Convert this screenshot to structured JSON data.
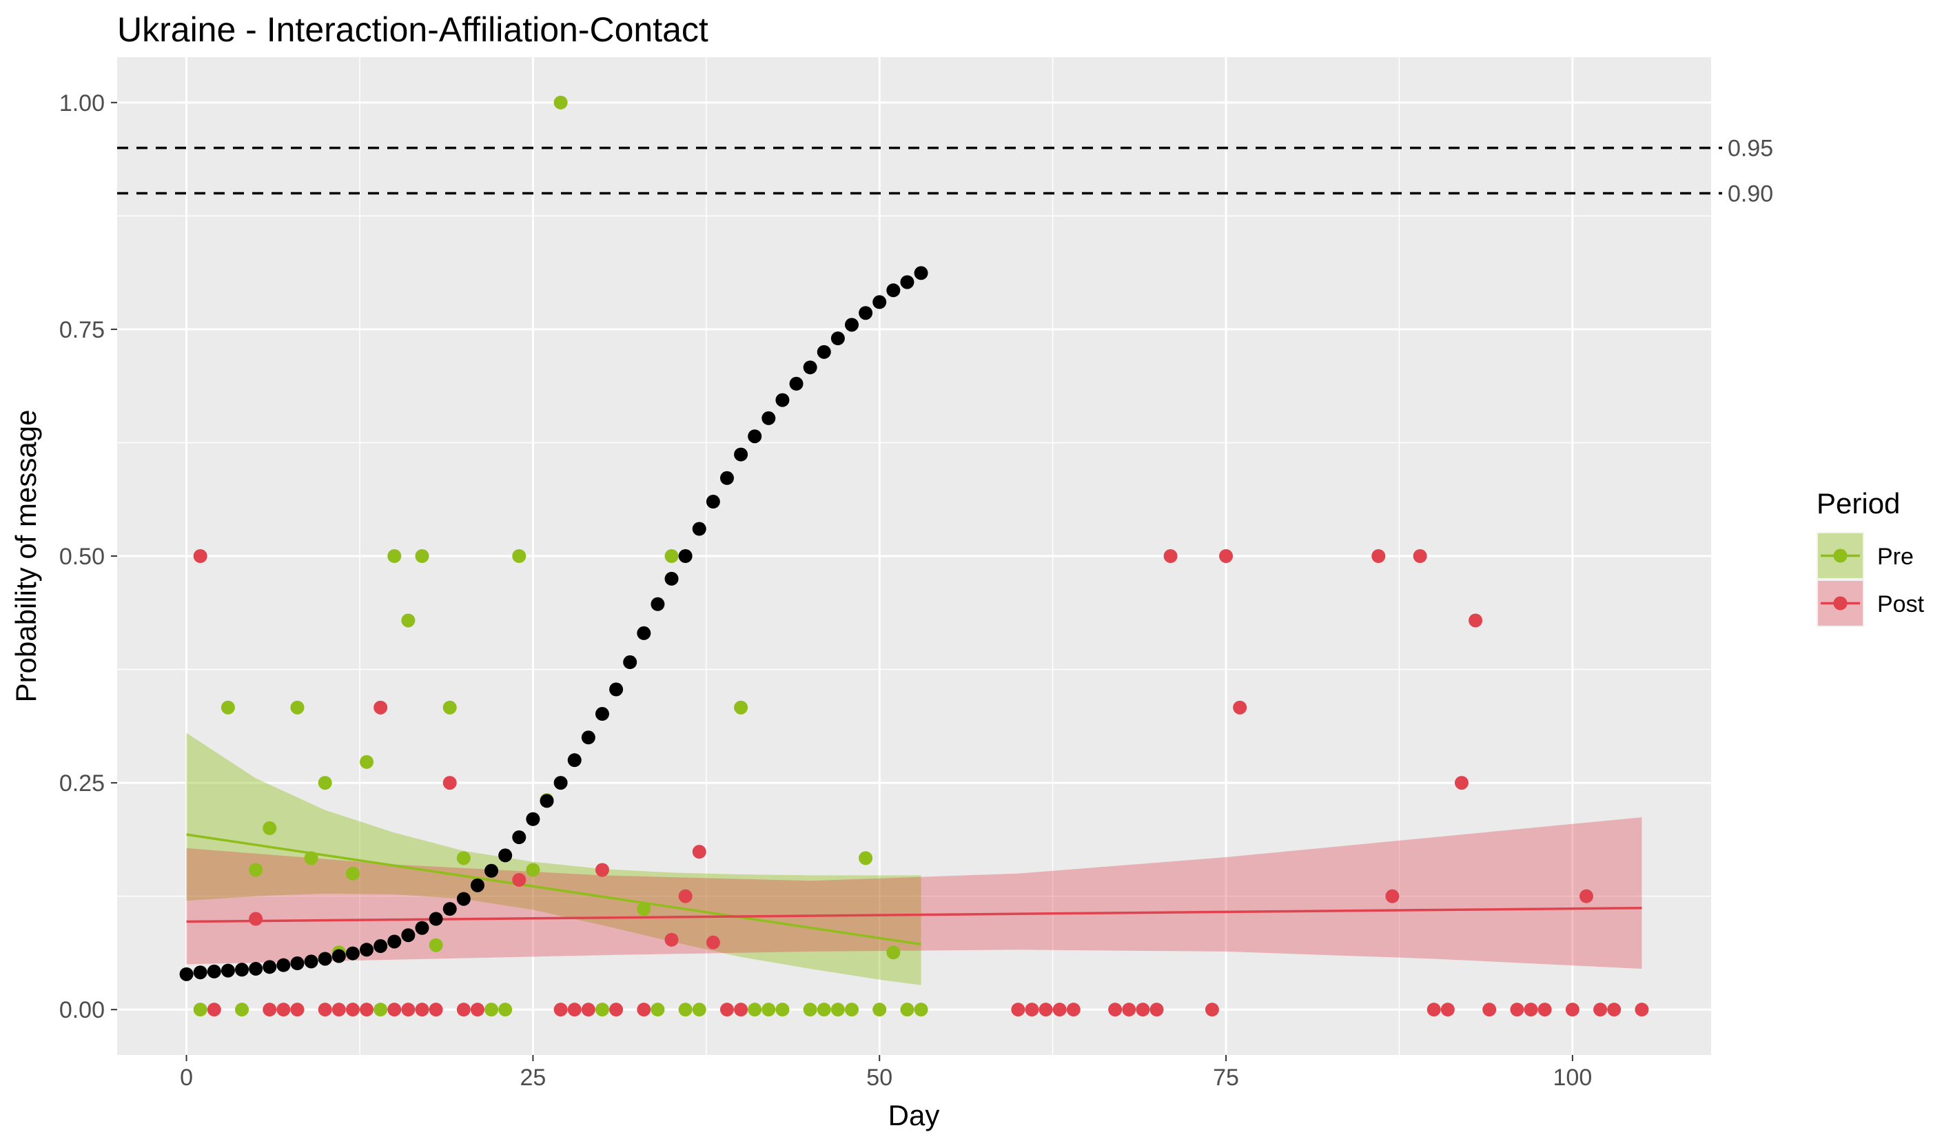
{
  "chart_data": {
    "type": "scatter",
    "title": "Ukraine - Interaction-Affiliation-Contact",
    "xlabel": "Day",
    "ylabel": "Probability of message",
    "xlim": [
      -5,
      110
    ],
    "ylim": [
      -0.05,
      1.05
    ],
    "x_ticks": [
      0,
      25,
      50,
      75,
      100
    ],
    "x_tick_labels": [
      "0",
      "25",
      "50",
      "75",
      "100"
    ],
    "y_ticks": [
      0,
      0.25,
      0.5,
      0.75,
      1.0
    ],
    "y_tick_labels": [
      "0.00",
      "0.25",
      "0.50",
      "0.75",
      "1.00"
    ],
    "grid": true,
    "reference_lines": [
      {
        "y": 0.95,
        "label": "0.95",
        "style": "dashed"
      },
      {
        "y": 0.9,
        "label": "0.90",
        "style": "dashed"
      }
    ],
    "legend": {
      "title": "Period",
      "position": "right",
      "entries": [
        "Pre",
        "Post"
      ]
    },
    "colors": {
      "Pre": "#8fbe1a",
      "Post": "#e0434e",
      "cumulative": "#000000",
      "panel": "#ebebeb",
      "grid": "#ffffff"
    },
    "series": [
      {
        "name": "Pre",
        "points": [
          [
            1,
            0
          ],
          [
            3,
            0.333
          ],
          [
            4,
            0
          ],
          [
            5,
            0.154
          ],
          [
            6,
            0.2
          ],
          [
            8,
            0.333
          ],
          [
            9,
            0.167
          ],
          [
            10,
            0.25
          ],
          [
            11,
            0.063
          ],
          [
            12,
            0.15
          ],
          [
            13,
            0.273
          ],
          [
            14,
            0
          ],
          [
            15,
            0.5
          ],
          [
            16,
            0.429
          ],
          [
            17,
            0.5
          ],
          [
            18,
            0.071
          ],
          [
            19,
            0.333
          ],
          [
            20,
            0.167
          ],
          [
            22,
            0
          ],
          [
            23,
            0
          ],
          [
            24,
            0.5
          ],
          [
            25,
            0.154
          ],
          [
            26,
            0.231
          ],
          [
            27,
            1.0
          ],
          [
            30,
            0
          ],
          [
            33,
            0.111
          ],
          [
            34,
            0
          ],
          [
            35,
            0.5
          ],
          [
            36,
            0
          ],
          [
            37,
            0
          ],
          [
            40,
            0.333
          ],
          [
            41,
            0
          ],
          [
            42,
            0
          ],
          [
            43,
            0
          ],
          [
            45,
            0
          ],
          [
            46,
            0
          ],
          [
            47,
            0
          ],
          [
            48,
            0
          ],
          [
            49,
            0.167
          ],
          [
            50,
            0
          ],
          [
            51,
            0.063
          ],
          [
            52,
            0
          ],
          [
            53,
            0
          ]
        ],
        "fit": {
          "x": [
            0,
            53
          ],
          "y": [
            0.193,
            0.072
          ]
        },
        "band": {
          "x": [
            0,
            5,
            10,
            15,
            20,
            25,
            30,
            35,
            40,
            45,
            50,
            53
          ],
          "lower": [
            0.12,
            0.125,
            0.128,
            0.127,
            0.122,
            0.11,
            0.093,
            0.075,
            0.058,
            0.045,
            0.033,
            0.027
          ],
          "upper": [
            0.305,
            0.255,
            0.22,
            0.195,
            0.175,
            0.163,
            0.155,
            0.151,
            0.149,
            0.148,
            0.148,
            0.148
          ]
        }
      },
      {
        "name": "Post",
        "points": [
          [
            1,
            0.5
          ],
          [
            2,
            0
          ],
          [
            5,
            0.1
          ],
          [
            6,
            0
          ],
          [
            7,
            0
          ],
          [
            8,
            0
          ],
          [
            10,
            0
          ],
          [
            11,
            0
          ],
          [
            12,
            0
          ],
          [
            13,
            0
          ],
          [
            14,
            0.333
          ],
          [
            15,
            0
          ],
          [
            16,
            0
          ],
          [
            17,
            0
          ],
          [
            18,
            0
          ],
          [
            19,
            0.25
          ],
          [
            20,
            0
          ],
          [
            21,
            0
          ],
          [
            24,
            0.143
          ],
          [
            27,
            0
          ],
          [
            28,
            0
          ],
          [
            29,
            0
          ],
          [
            30,
            0.154
          ],
          [
            31,
            0
          ],
          [
            33,
            0
          ],
          [
            35,
            0.077
          ],
          [
            36,
            0.125
          ],
          [
            37,
            0.174
          ],
          [
            38,
            0.074
          ],
          [
            39,
            0
          ],
          [
            40,
            0
          ],
          [
            60,
            0
          ],
          [
            61,
            0
          ],
          [
            62,
            0
          ],
          [
            63,
            0
          ],
          [
            64,
            0
          ],
          [
            67,
            0
          ],
          [
            68,
            0
          ],
          [
            69,
            0
          ],
          [
            70,
            0
          ],
          [
            71,
            0.5
          ],
          [
            74,
            0
          ],
          [
            75,
            0.5
          ],
          [
            76,
            0.333
          ],
          [
            86,
            0.5
          ],
          [
            87,
            0.125
          ],
          [
            89,
            0.5
          ],
          [
            90,
            0
          ],
          [
            91,
            0
          ],
          [
            92,
            0.25
          ],
          [
            93,
            0.429
          ],
          [
            94,
            0
          ],
          [
            96,
            0
          ],
          [
            97,
            0
          ],
          [
            98,
            0
          ],
          [
            100,
            0
          ],
          [
            101,
            0.125
          ],
          [
            102,
            0
          ],
          [
            103,
            0
          ],
          [
            105,
            0
          ]
        ],
        "fit": {
          "x": [
            0,
            105
          ],
          "y": [
            0.097,
            0.112
          ]
        },
        "band": {
          "x": [
            0,
            15,
            30,
            45,
            60,
            75,
            90,
            105
          ],
          "lower": [
            0.05,
            0.055,
            0.06,
            0.064,
            0.066,
            0.064,
            0.056,
            0.045
          ],
          "upper": [
            0.178,
            0.16,
            0.148,
            0.142,
            0.15,
            0.168,
            0.19,
            0.212
          ]
        }
      },
      {
        "name": "",
        "points": [
          [
            0,
            0.039
          ],
          [
            1,
            0.041
          ],
          [
            2,
            0.042
          ],
          [
            3,
            0.043
          ],
          [
            4,
            0.044
          ],
          [
            5,
            0.045
          ],
          [
            6,
            0.047
          ],
          [
            7,
            0.049
          ],
          [
            8,
            0.051
          ],
          [
            9,
            0.053
          ],
          [
            10,
            0.056
          ],
          [
            11,
            0.059
          ],
          [
            12,
            0.062
          ],
          [
            13,
            0.066
          ],
          [
            14,
            0.07
          ],
          [
            15,
            0.075
          ],
          [
            16,
            0.082
          ],
          [
            17,
            0.09
          ],
          [
            18,
            0.1
          ],
          [
            19,
            0.111
          ],
          [
            20,
            0.122
          ],
          [
            21,
            0.137
          ],
          [
            22,
            0.153
          ],
          [
            23,
            0.17
          ],
          [
            24,
            0.19
          ],
          [
            25,
            0.21
          ],
          [
            26,
            0.23
          ],
          [
            27,
            0.25
          ],
          [
            28,
            0.275
          ],
          [
            29,
            0.3
          ],
          [
            30,
            0.326
          ],
          [
            31,
            0.353
          ],
          [
            32,
            0.383
          ],
          [
            33,
            0.415
          ],
          [
            34,
            0.447
          ],
          [
            35,
            0.475
          ],
          [
            36,
            0.5
          ],
          [
            37,
            0.53
          ],
          [
            38,
            0.56
          ],
          [
            39,
            0.586
          ],
          [
            40,
            0.612
          ],
          [
            41,
            0.632
          ],
          [
            42,
            0.652
          ],
          [
            43,
            0.672
          ],
          [
            44,
            0.69
          ],
          [
            45,
            0.708
          ],
          [
            46,
            0.725
          ],
          [
            47,
            0.74
          ],
          [
            48,
            0.755
          ],
          [
            49,
            0.768
          ],
          [
            50,
            0.78
          ],
          [
            51,
            0.793
          ],
          [
            52,
            0.802
          ],
          [
            53,
            0.812
          ]
        ]
      }
    ]
  }
}
